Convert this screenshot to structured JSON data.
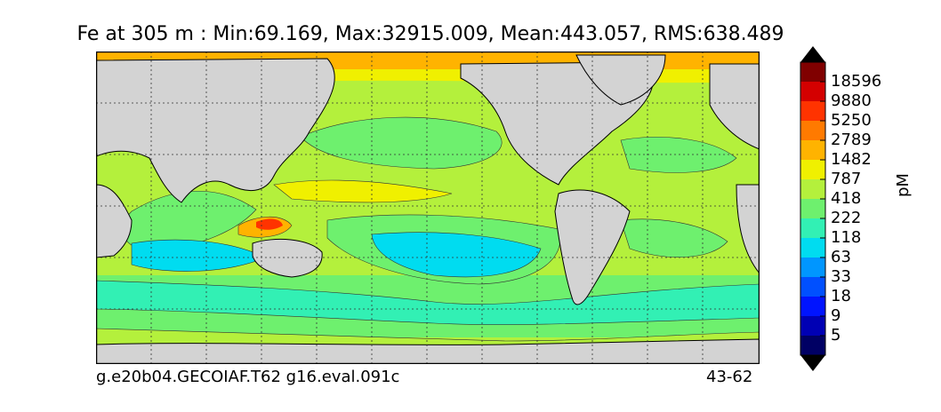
{
  "title": "Fe at 305 m : Min:69.169, Max:32915.009, Mean:443.057, RMS:638.489",
  "footer_left": "g.e20b04.GECOIAF.T62 g16.eval.091c",
  "footer_right": "43-62",
  "colorbar": {
    "unit": "pM",
    "tick_labels": [
      "18596",
      "9880",
      "5250",
      "2789",
      "1482",
      "787",
      "418",
      "222",
      "118",
      "63",
      "33",
      "18",
      "9",
      "5"
    ],
    "colors_top_to_bottom": [
      "#800000",
      "#d40000",
      "#ff3300",
      "#ff7a00",
      "#ffb300",
      "#f0f000",
      "#b4f03c",
      "#6ef06e",
      "#32f0b4",
      "#00dcf0",
      "#0096ff",
      "#0050ff",
      "#0014ff",
      "#0000b4",
      "#000064"
    ],
    "arrow_color": "#000000"
  },
  "map": {
    "land_color": "#d3d3d3",
    "ocean_base_color": "#b4f03c",
    "gridlines": "dotted"
  }
}
